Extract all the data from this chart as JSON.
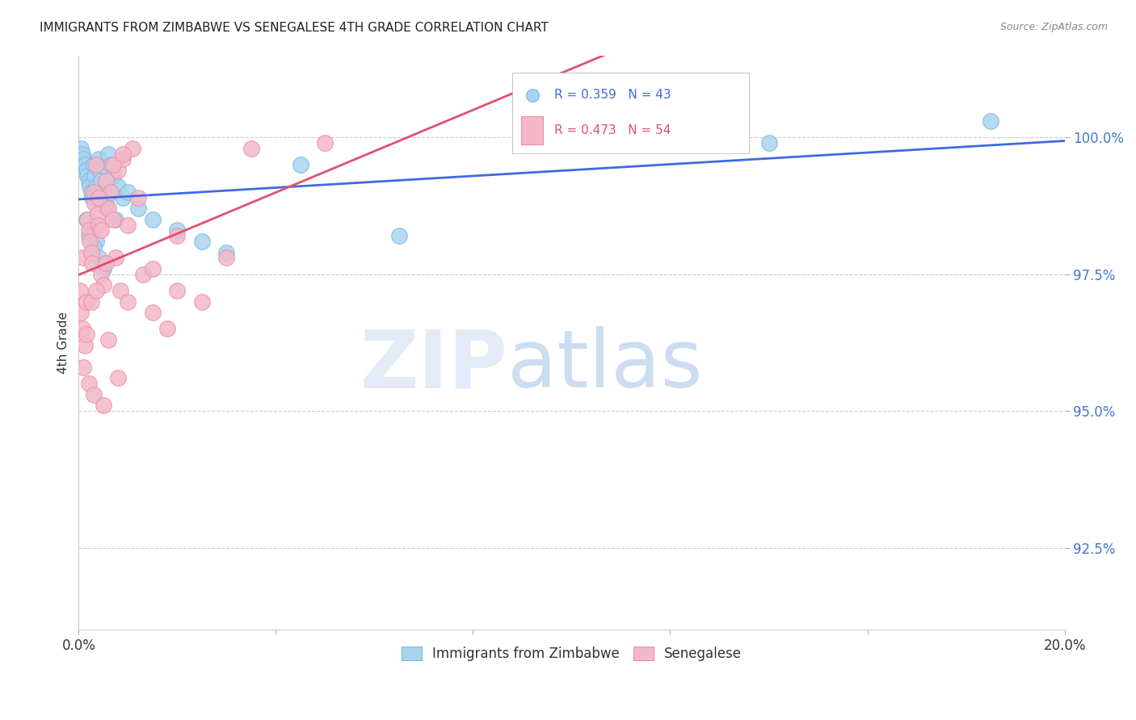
{
  "title": "IMMIGRANTS FROM ZIMBABWE VS SENEGALESE 4TH GRADE CORRELATION CHART",
  "source": "Source: ZipAtlas.com",
  "ylabel": "4th Grade",
  "yticks": [
    92.5,
    95.0,
    97.5,
    100.0
  ],
  "ytick_labels": [
    "92.5%",
    "95.0%",
    "97.5%",
    "100.0%"
  ],
  "xmin": 0.0,
  "xmax": 20.0,
  "ymin": 91.0,
  "ymax": 101.5,
  "blue_color": "#a8d4f0",
  "pink_color": "#f4b8c8",
  "blue_edge": "#7ab8e0",
  "pink_edge": "#e890a8",
  "trend_blue": "#4169E1",
  "trend_pink": "#e05070",
  "legend_label_blue": "Immigrants from Zimbabwe",
  "legend_label_pink": "Senegalese",
  "watermark_zip": "ZIP",
  "watermark_atlas": "atlas",
  "blue_x": [
    0.05,
    0.08,
    0.1,
    0.12,
    0.15,
    0.18,
    0.2,
    0.22,
    0.25,
    0.28,
    0.3,
    0.32,
    0.35,
    0.38,
    0.4,
    0.42,
    0.45,
    0.5,
    0.55,
    0.6,
    0.65,
    0.7,
    0.8,
    0.9,
    1.0,
    1.2,
    1.5,
    2.0,
    2.5,
    3.0,
    0.15,
    0.25,
    0.35,
    0.55,
    0.75,
    4.5,
    6.5,
    14.0,
    18.5,
    0.2,
    0.3,
    0.4,
    0.5
  ],
  "blue_y": [
    99.8,
    99.7,
    99.6,
    99.5,
    99.4,
    99.3,
    99.2,
    99.1,
    99.0,
    98.9,
    99.5,
    99.3,
    99.1,
    98.9,
    99.6,
    99.4,
    99.2,
    99.0,
    98.8,
    99.7,
    99.5,
    99.3,
    99.1,
    98.9,
    99.0,
    98.7,
    98.5,
    98.3,
    98.1,
    97.9,
    98.5,
    98.3,
    98.1,
    98.7,
    98.5,
    99.5,
    98.2,
    99.9,
    100.3,
    98.2,
    98.0,
    97.8,
    97.6
  ],
  "pink_x": [
    0.03,
    0.05,
    0.07,
    0.1,
    0.12,
    0.15,
    0.18,
    0.2,
    0.22,
    0.25,
    0.28,
    0.3,
    0.32,
    0.35,
    0.38,
    0.4,
    0.45,
    0.5,
    0.55,
    0.6,
    0.65,
    0.7,
    0.75,
    0.8,
    0.85,
    0.9,
    1.0,
    1.1,
    1.2,
    1.3,
    1.5,
    1.8,
    2.0,
    2.5,
    3.0,
    0.1,
    0.2,
    0.3,
    0.4,
    0.5,
    0.6,
    0.7,
    0.8,
    0.9,
    1.0,
    1.5,
    2.0,
    3.5,
    5.0,
    0.15,
    0.25,
    0.35,
    0.45,
    0.55
  ],
  "pink_y": [
    97.2,
    96.8,
    96.5,
    97.8,
    96.2,
    97.0,
    98.5,
    98.3,
    98.1,
    97.9,
    97.7,
    99.0,
    98.8,
    99.5,
    98.6,
    98.4,
    97.5,
    97.3,
    99.2,
    98.7,
    99.0,
    98.5,
    97.8,
    99.4,
    97.2,
    99.6,
    97.0,
    99.8,
    98.9,
    97.5,
    96.8,
    96.5,
    98.2,
    97.0,
    97.8,
    95.8,
    95.5,
    95.3,
    98.9,
    95.1,
    96.3,
    99.5,
    95.6,
    99.7,
    98.4,
    97.6,
    97.2,
    99.8,
    99.9,
    96.4,
    97.0,
    97.2,
    98.3,
    97.7
  ]
}
